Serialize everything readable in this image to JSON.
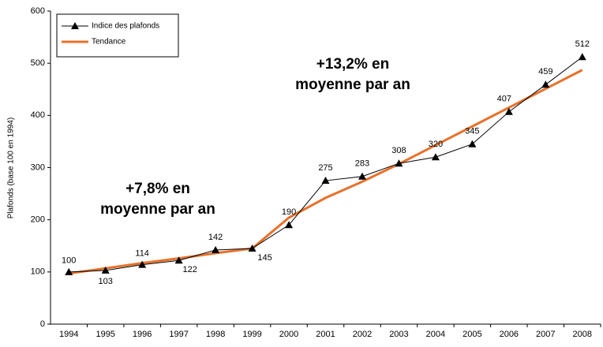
{
  "chart_data": {
    "type": "line",
    "y_label": "Plafonds (base 100 en 1994)",
    "categories": [
      "1994",
      "1995",
      "1996",
      "1997",
      "1998",
      "1999",
      "2000",
      "2001",
      "2002",
      "2003",
      "2004",
      "2005",
      "2006",
      "2007",
      "2008"
    ],
    "series": [
      {
        "name": "Indice des plafonds",
        "color": "#000000",
        "marker": "triangle",
        "values": [
          100,
          103,
          114,
          122,
          142,
          145,
          190,
          275,
          283,
          308,
          320,
          345,
          407,
          459,
          512
        ]
      },
      {
        "name": "Tendance",
        "color": "#e8712a",
        "values": [
          97,
          107,
          117,
          126,
          136,
          145,
          204,
          242,
          273,
          307,
          343,
          379,
          415,
          451,
          487
        ]
      }
    ],
    "ylim": [
      0,
      600
    ],
    "yticks": [
      0,
      100,
      200,
      300,
      400,
      500,
      600
    ],
    "annotations": [
      {
        "lines": [
          "+7,8% en",
          "moyenne par an"
        ]
      },
      {
        "lines": [
          "+13,2% en",
          "moyenne par an"
        ]
      }
    ],
    "legend": "top-left"
  }
}
